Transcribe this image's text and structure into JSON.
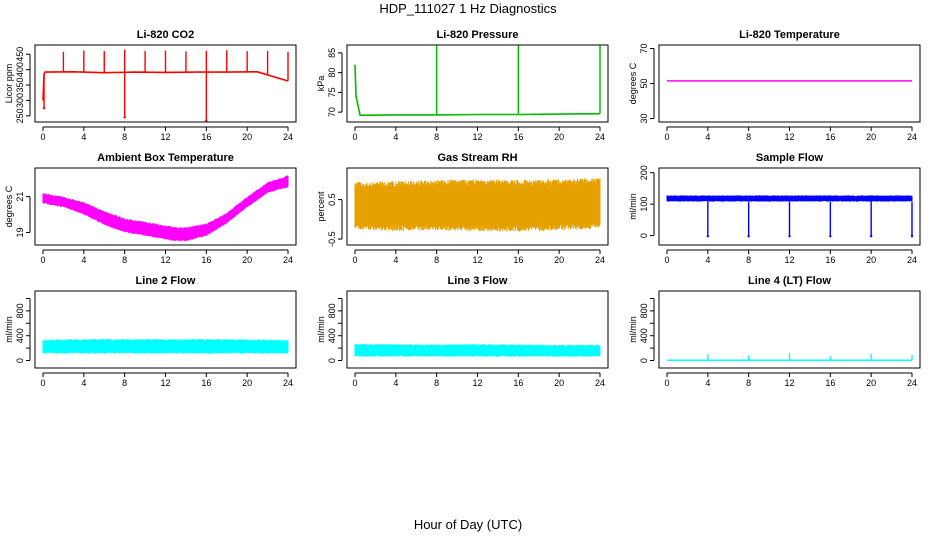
{
  "title": "HDP_111027  1 Hz Diagnostics",
  "x_axis_label": "Hour of Day (UTC)",
  "chart_data": [
    {
      "type": "line",
      "title": "Li-820 CO2",
      "ylabel": "Licor ppm",
      "color": "#ff0000",
      "xlim": [
        0,
        24
      ],
      "ylim": [
        230,
        480
      ],
      "xticks": [
        0,
        4,
        8,
        12,
        16,
        20,
        24
      ],
      "yticks": [
        250,
        300,
        350,
        400,
        450
      ],
      "series": [
        {
          "kind": "baseline",
          "x": [
            0,
            0.1,
            0.2,
            3,
            6,
            9,
            12,
            15,
            18,
            21,
            24
          ],
          "y": [
            300,
            385,
            392,
            393,
            390,
            392,
            391,
            392,
            392,
            393,
            363
          ]
        },
        {
          "kind": "spikes",
          "x": [
            2,
            4,
            6,
            8,
            10,
            12,
            14,
            16,
            18,
            20,
            22,
            24
          ],
          "y": [
            458,
            462,
            460,
            465,
            461,
            462,
            459,
            461,
            463,
            460,
            461,
            458
          ]
        },
        {
          "kind": "drops",
          "x": [
            0.1,
            8,
            16
          ],
          "y": [
            275,
            245,
            235
          ]
        }
      ]
    },
    {
      "type": "line",
      "title": "Li-820 Pressure",
      "ylabel": "kPa",
      "color": "#00bb00",
      "xlim": [
        0,
        24
      ],
      "ylim": [
        67.5,
        87
      ],
      "xticks": [
        0,
        4,
        8,
        12,
        16,
        20,
        24
      ],
      "yticks": [
        70,
        75,
        80,
        85
      ],
      "series": [
        {
          "kind": "baseline",
          "x": [
            0,
            0.1,
            0.5,
            4,
            8,
            12,
            16,
            20,
            24
          ],
          "y": [
            82,
            74,
            69.2,
            69.3,
            69.3,
            69.4,
            69.4,
            69.5,
            69.6
          ]
        },
        {
          "kind": "spikes",
          "x": [
            8,
            16,
            24
          ],
          "y": [
            87,
            87,
            87
          ]
        }
      ]
    },
    {
      "type": "line",
      "title": "Li-820 Temperature",
      "ylabel": "degrees C",
      "color": "#ff00ff",
      "xlim": [
        0,
        24
      ],
      "ylim": [
        28,
        72
      ],
      "xticks": [
        0,
        4,
        8,
        12,
        16,
        20,
        24
      ],
      "yticks": [
        30,
        50,
        70
      ],
      "series": [
        {
          "kind": "baseline",
          "x": [
            0,
            24
          ],
          "y": [
            51.5,
            51.5
          ]
        }
      ]
    },
    {
      "type": "area",
      "title": "Ambient Box Temperature",
      "ylabel": "degrees C",
      "color": "#ff00ff",
      "xlim": [
        0,
        24
      ],
      "ylim": [
        18.3,
        22.6
      ],
      "xticks": [
        0,
        4,
        8,
        12,
        16,
        20,
        24
      ],
      "yticks": [
        19,
        21
      ],
      "series": [
        {
          "kind": "band",
          "x": [
            0,
            2,
            4,
            6,
            8,
            10,
            12,
            13,
            14,
            16,
            18,
            20,
            22,
            24
          ],
          "upper": [
            21.2,
            21.0,
            20.7,
            20.2,
            19.8,
            19.6,
            19.4,
            19.3,
            19.3,
            19.5,
            20.1,
            21.0,
            21.8,
            22.2
          ],
          "lower": [
            20.6,
            20.4,
            20.0,
            19.4,
            19.0,
            18.8,
            18.6,
            18.5,
            18.5,
            18.8,
            19.5,
            20.4,
            21.2,
            21.5
          ]
        }
      ]
    },
    {
      "type": "area",
      "title": "Gas Stream RH",
      "ylabel": "percent",
      "color": "#e6a000",
      "xlim": [
        0,
        24
      ],
      "ylim": [
        -0.65,
        1.3
      ],
      "xticks": [
        0,
        4,
        8,
        12,
        16,
        20,
        24
      ],
      "yticks": [
        -0.5,
        0.5
      ],
      "ytick_labels": [
        "-0.5",
        "0.5"
      ],
      "series": [
        {
          "kind": "band",
          "x": [
            0,
            4,
            8,
            12,
            16,
            20,
            24
          ],
          "upper": [
            0.95,
            0.97,
            1.0,
            1.02,
            1.0,
            1.02,
            1.05
          ],
          "lower": [
            -0.25,
            -0.3,
            -0.28,
            -0.3,
            -0.32,
            -0.28,
            -0.25
          ]
        }
      ]
    },
    {
      "type": "line",
      "title": "Sample Flow",
      "ylabel": "ml/min",
      "color": "#0000ff",
      "xlim": [
        0,
        24
      ],
      "ylim": [
        -30,
        215
      ],
      "xticks": [
        0,
        4,
        8,
        12,
        16,
        20,
        24
      ],
      "yticks": [
        0,
        100,
        200
      ],
      "series": [
        {
          "kind": "band",
          "x": [
            0,
            24
          ],
          "upper": [
            128,
            128
          ],
          "lower": [
            108,
            108
          ]
        },
        {
          "kind": "drops",
          "x": [
            4,
            8,
            12,
            16,
            20,
            24
          ],
          "y": [
            -2,
            -2,
            -2,
            -2,
            -2,
            -2
          ]
        }
      ]
    },
    {
      "type": "area",
      "title": "Line 2 Flow",
      "ylabel": "ml/min",
      "color": "#00ffff",
      "xlim": [
        0,
        24
      ],
      "ylim": [
        -120,
        1120
      ],
      "xticks": [
        0,
        4,
        8,
        12,
        16,
        20,
        24
      ],
      "yticks": [
        0,
        200,
        400,
        600,
        800,
        1000
      ],
      "ytick_labels": [
        "0",
        "",
        "400",
        "",
        "800",
        ""
      ],
      "series": [
        {
          "kind": "band",
          "x": [
            0,
            4,
            8,
            12,
            16,
            20,
            24
          ],
          "upper": [
            340,
            350,
            350,
            345,
            350,
            345,
            330
          ],
          "lower": [
            110,
            110,
            110,
            110,
            110,
            110,
            110
          ]
        }
      ]
    },
    {
      "type": "area",
      "title": "Line 3 Flow",
      "ylabel": "ml/min",
      "color": "#00ffff",
      "xlim": [
        0,
        24
      ],
      "ylim": [
        -120,
        1120
      ],
      "xticks": [
        0,
        4,
        8,
        12,
        16,
        20,
        24
      ],
      "yticks": [
        0,
        200,
        400,
        600,
        800,
        1000
      ],
      "ytick_labels": [
        "0",
        "",
        "400",
        "",
        "800",
        ""
      ],
      "series": [
        {
          "kind": "band",
          "x": [
            0,
            4,
            8,
            12,
            16,
            20,
            24
          ],
          "upper": [
            270,
            265,
            260,
            265,
            260,
            255,
            255
          ],
          "lower": [
            60,
            60,
            60,
            60,
            60,
            60,
            60
          ]
        }
      ]
    },
    {
      "type": "line",
      "title": "Line 4 (LT) Flow",
      "ylabel": "ml/min",
      "color": "#00ffff",
      "xlim": [
        0,
        24
      ],
      "ylim": [
        -120,
        1120
      ],
      "xticks": [
        0,
        4,
        8,
        12,
        16,
        20,
        24
      ],
      "yticks": [
        0,
        200,
        400,
        600,
        800,
        1000
      ],
      "ytick_labels": [
        "0",
        "",
        "400",
        "",
        "800",
        ""
      ],
      "series": [
        {
          "kind": "baseline",
          "x": [
            0,
            24
          ],
          "y": [
            5,
            5
          ]
        },
        {
          "kind": "spikes",
          "x": [
            4,
            8,
            12,
            16,
            20,
            24
          ],
          "y": [
            100,
            80,
            120,
            70,
            110,
            90
          ]
        }
      ]
    }
  ]
}
